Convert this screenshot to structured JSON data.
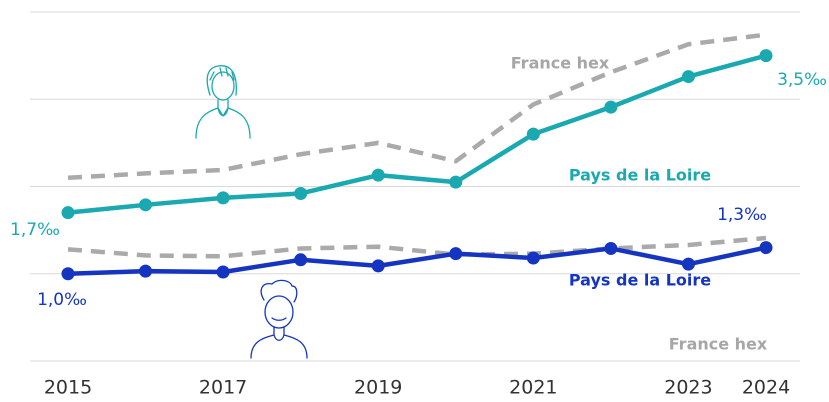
{
  "chart_data": {
    "type": "line",
    "x": [
      2015,
      2016,
      2017,
      2018,
      2019,
      2020,
      2021,
      2022,
      2023,
      2024
    ],
    "xlim": [
      2015,
      2024
    ],
    "xticks": [
      2015,
      2017,
      2019,
      2021,
      2023,
      2024
    ],
    "ylim": [
      0,
      4
    ],
    "yticks": [
      0,
      1,
      2,
      3,
      4
    ],
    "grid": true,
    "series": [
      {
        "name": "France hex",
        "color": "#aaaaaa",
        "dashed": true,
        "values": [
          2.1,
          2.15,
          2.19,
          2.37,
          2.5,
          2.29,
          2.94,
          3.31,
          3.63,
          3.74
        ]
      },
      {
        "name": "Pays de la Loire",
        "color": "#1aa9b0",
        "values": [
          1.7,
          1.79,
          1.87,
          1.92,
          2.13,
          2.05,
          2.6,
          2.91,
          3.26,
          3.5
        ],
        "value_labels": [
          "1,7‰",
          null,
          null,
          null,
          null,
          null,
          null,
          null,
          null,
          "3,5‰"
        ]
      },
      {
        "name": "France hex",
        "color": "#aaaaaa",
        "dashed": true,
        "values": [
          1.28,
          1.21,
          1.2,
          1.29,
          1.31,
          1.22,
          1.23,
          1.29,
          1.33,
          1.41
        ]
      },
      {
        "name": "Pays de la Loire",
        "color": "#1535c0",
        "values": [
          1.0,
          1.03,
          1.02,
          1.16,
          1.09,
          1.23,
          1.18,
          1.29,
          1.11,
          1.3
        ],
        "value_labels": [
          "1,0‰",
          null,
          null,
          null,
          null,
          null,
          null,
          null,
          null,
          "1,3‰"
        ]
      }
    ]
  }
}
